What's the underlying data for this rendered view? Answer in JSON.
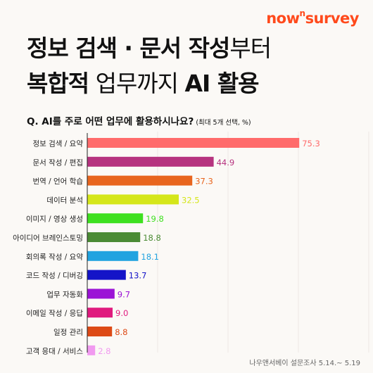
{
  "brand": {
    "prefix": "now",
    "sup": "n",
    "suffix": "survey",
    "color": "#ff4a1c"
  },
  "title": {
    "line1_bold": "정보 검색 · 문서 작성",
    "line1_light": "부터",
    "line2_bold_a": "복합적",
    "line2_light": " 업무까지 ",
    "line2_bold_b": "AI 활용"
  },
  "question": {
    "prefix": "Q. AI를 주로 어떤 ",
    "emphasis": "업무에 활용",
    "suffix": "하시나요?",
    "note": " (최대 5개 선택, %)"
  },
  "source": "나우앤서베이 설문조사 5.14.~ 5.19",
  "chart_data": {
    "type": "bar",
    "orientation": "horizontal",
    "unit": "%",
    "xlim": [
      0,
      100
    ],
    "categories": [
      "정보 검색 / 요약",
      "문서 작성 / 편집",
      "번역 / 언어 학습",
      "데이터 분석",
      "이미지 / 영상 생성",
      "아이디어 브레인스토밍",
      "회의록 작성 / 요약",
      "코드 작성 / 디버깅",
      "업무 자동화",
      "이메일 작성 / 응답",
      "일정 관리",
      "고객 응대 / 서비스"
    ],
    "values": [
      75.3,
      44.9,
      37.3,
      32.5,
      19.8,
      18.8,
      18.1,
      13.7,
      9.7,
      9.0,
      8.8,
      2.8
    ],
    "labels": [
      "75.3",
      "44.9",
      "37.3",
      "32.5",
      "19.8",
      "18.8",
      "18.1",
      "13.7",
      "9.7",
      "9.0",
      "8.8",
      "2.8"
    ],
    "colors": [
      "#ff6b6b",
      "#b6337f",
      "#e8651e",
      "#d5e61a",
      "#3ee01f",
      "#4b8b34",
      "#21a3e0",
      "#1414c8",
      "#9b13d6",
      "#e01a7e",
      "#dd4a16",
      "#f19af0"
    ]
  }
}
